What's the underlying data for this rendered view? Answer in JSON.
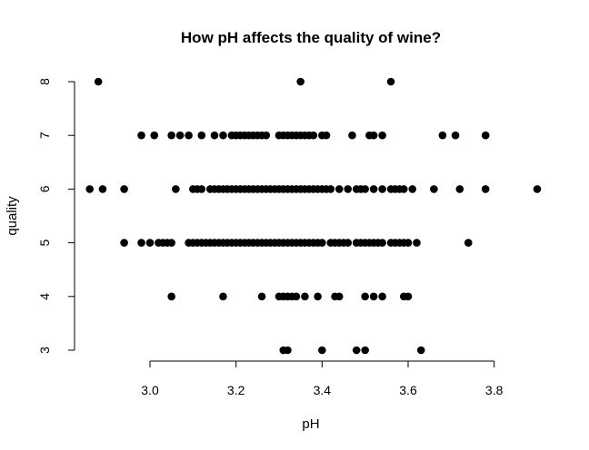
{
  "chart_data": {
    "type": "scatter",
    "title": "How pH affects the quality of wine?",
    "xlabel": "pH",
    "ylabel": "quality",
    "xlim": [
      2.85,
      3.9
    ],
    "ylim": [
      3,
      8
    ],
    "xticks": [
      "3.0",
      "3.2",
      "3.4",
      "3.6",
      "3.8"
    ],
    "xtick_values": [
      3.0,
      3.2,
      3.4,
      3.6,
      3.8
    ],
    "yticks": [
      "3",
      "4",
      "5",
      "6",
      "7",
      "8"
    ],
    "ytick_values": [
      3,
      4,
      5,
      6,
      7,
      8
    ],
    "grid": false,
    "marker_color": "#000000",
    "points": [
      {
        "x": 2.88,
        "y": 8
      },
      {
        "x": 3.35,
        "y": 8
      },
      {
        "x": 3.56,
        "y": 8
      },
      {
        "x": 2.98,
        "y": 7
      },
      {
        "x": 3.01,
        "y": 7
      },
      {
        "x": 3.05,
        "y": 7
      },
      {
        "x": 3.07,
        "y": 7
      },
      {
        "x": 3.09,
        "y": 7
      },
      {
        "x": 3.12,
        "y": 7
      },
      {
        "x": 3.15,
        "y": 7
      },
      {
        "x": 3.17,
        "y": 7
      },
      {
        "x": 3.19,
        "y": 7
      },
      {
        "x": 3.2,
        "y": 7
      },
      {
        "x": 3.21,
        "y": 7
      },
      {
        "x": 3.22,
        "y": 7
      },
      {
        "x": 3.23,
        "y": 7
      },
      {
        "x": 3.24,
        "y": 7
      },
      {
        "x": 3.25,
        "y": 7
      },
      {
        "x": 3.26,
        "y": 7
      },
      {
        "x": 3.27,
        "y": 7
      },
      {
        "x": 3.3,
        "y": 7
      },
      {
        "x": 3.31,
        "y": 7
      },
      {
        "x": 3.32,
        "y": 7
      },
      {
        "x": 3.33,
        "y": 7
      },
      {
        "x": 3.34,
        "y": 7
      },
      {
        "x": 3.35,
        "y": 7
      },
      {
        "x": 3.36,
        "y": 7
      },
      {
        "x": 3.37,
        "y": 7
      },
      {
        "x": 3.38,
        "y": 7
      },
      {
        "x": 3.4,
        "y": 7
      },
      {
        "x": 3.41,
        "y": 7
      },
      {
        "x": 3.47,
        "y": 7
      },
      {
        "x": 3.51,
        "y": 7
      },
      {
        "x": 3.52,
        "y": 7
      },
      {
        "x": 3.54,
        "y": 7
      },
      {
        "x": 3.68,
        "y": 7
      },
      {
        "x": 3.71,
        "y": 7
      },
      {
        "x": 3.78,
        "y": 7
      },
      {
        "x": 2.86,
        "y": 6
      },
      {
        "x": 2.89,
        "y": 6
      },
      {
        "x": 2.94,
        "y": 6
      },
      {
        "x": 3.06,
        "y": 6
      },
      {
        "x": 3.1,
        "y": 6
      },
      {
        "x": 3.11,
        "y": 6
      },
      {
        "x": 3.12,
        "y": 6
      },
      {
        "x": 3.14,
        "y": 6
      },
      {
        "x": 3.15,
        "y": 6
      },
      {
        "x": 3.16,
        "y": 6
      },
      {
        "x": 3.17,
        "y": 6
      },
      {
        "x": 3.18,
        "y": 6
      },
      {
        "x": 3.19,
        "y": 6
      },
      {
        "x": 3.2,
        "y": 6
      },
      {
        "x": 3.21,
        "y": 6
      },
      {
        "x": 3.22,
        "y": 6
      },
      {
        "x": 3.23,
        "y": 6
      },
      {
        "x": 3.24,
        "y": 6
      },
      {
        "x": 3.25,
        "y": 6
      },
      {
        "x": 3.26,
        "y": 6
      },
      {
        "x": 3.27,
        "y": 6
      },
      {
        "x": 3.28,
        "y": 6
      },
      {
        "x": 3.29,
        "y": 6
      },
      {
        "x": 3.3,
        "y": 6
      },
      {
        "x": 3.31,
        "y": 6
      },
      {
        "x": 3.32,
        "y": 6
      },
      {
        "x": 3.33,
        "y": 6
      },
      {
        "x": 3.34,
        "y": 6
      },
      {
        "x": 3.35,
        "y": 6
      },
      {
        "x": 3.36,
        "y": 6
      },
      {
        "x": 3.37,
        "y": 6
      },
      {
        "x": 3.38,
        "y": 6
      },
      {
        "x": 3.39,
        "y": 6
      },
      {
        "x": 3.4,
        "y": 6
      },
      {
        "x": 3.41,
        "y": 6
      },
      {
        "x": 3.42,
        "y": 6
      },
      {
        "x": 3.44,
        "y": 6
      },
      {
        "x": 3.46,
        "y": 6
      },
      {
        "x": 3.48,
        "y": 6
      },
      {
        "x": 3.49,
        "y": 6
      },
      {
        "x": 3.5,
        "y": 6
      },
      {
        "x": 3.52,
        "y": 6
      },
      {
        "x": 3.54,
        "y": 6
      },
      {
        "x": 3.56,
        "y": 6
      },
      {
        "x": 3.57,
        "y": 6
      },
      {
        "x": 3.58,
        "y": 6
      },
      {
        "x": 3.59,
        "y": 6
      },
      {
        "x": 3.61,
        "y": 6
      },
      {
        "x": 3.66,
        "y": 6
      },
      {
        "x": 3.72,
        "y": 6
      },
      {
        "x": 3.78,
        "y": 6
      },
      {
        "x": 3.9,
        "y": 6
      },
      {
        "x": 2.94,
        "y": 5
      },
      {
        "x": 2.98,
        "y": 5
      },
      {
        "x": 3.0,
        "y": 5
      },
      {
        "x": 3.02,
        "y": 5
      },
      {
        "x": 3.03,
        "y": 5
      },
      {
        "x": 3.04,
        "y": 5
      },
      {
        "x": 3.05,
        "y": 5
      },
      {
        "x": 3.09,
        "y": 5
      },
      {
        "x": 3.1,
        "y": 5
      },
      {
        "x": 3.11,
        "y": 5
      },
      {
        "x": 3.12,
        "y": 5
      },
      {
        "x": 3.13,
        "y": 5
      },
      {
        "x": 3.14,
        "y": 5
      },
      {
        "x": 3.15,
        "y": 5
      },
      {
        "x": 3.16,
        "y": 5
      },
      {
        "x": 3.17,
        "y": 5
      },
      {
        "x": 3.18,
        "y": 5
      },
      {
        "x": 3.19,
        "y": 5
      },
      {
        "x": 3.2,
        "y": 5
      },
      {
        "x": 3.21,
        "y": 5
      },
      {
        "x": 3.22,
        "y": 5
      },
      {
        "x": 3.23,
        "y": 5
      },
      {
        "x": 3.24,
        "y": 5
      },
      {
        "x": 3.25,
        "y": 5
      },
      {
        "x": 3.26,
        "y": 5
      },
      {
        "x": 3.27,
        "y": 5
      },
      {
        "x": 3.28,
        "y": 5
      },
      {
        "x": 3.29,
        "y": 5
      },
      {
        "x": 3.3,
        "y": 5
      },
      {
        "x": 3.31,
        "y": 5
      },
      {
        "x": 3.32,
        "y": 5
      },
      {
        "x": 3.33,
        "y": 5
      },
      {
        "x": 3.34,
        "y": 5
      },
      {
        "x": 3.35,
        "y": 5
      },
      {
        "x": 3.36,
        "y": 5
      },
      {
        "x": 3.37,
        "y": 5
      },
      {
        "x": 3.38,
        "y": 5
      },
      {
        "x": 3.39,
        "y": 5
      },
      {
        "x": 3.4,
        "y": 5
      },
      {
        "x": 3.42,
        "y": 5
      },
      {
        "x": 3.43,
        "y": 5
      },
      {
        "x": 3.44,
        "y": 5
      },
      {
        "x": 3.45,
        "y": 5
      },
      {
        "x": 3.46,
        "y": 5
      },
      {
        "x": 3.48,
        "y": 5
      },
      {
        "x": 3.49,
        "y": 5
      },
      {
        "x": 3.5,
        "y": 5
      },
      {
        "x": 3.51,
        "y": 5
      },
      {
        "x": 3.52,
        "y": 5
      },
      {
        "x": 3.53,
        "y": 5
      },
      {
        "x": 3.54,
        "y": 5
      },
      {
        "x": 3.56,
        "y": 5
      },
      {
        "x": 3.57,
        "y": 5
      },
      {
        "x": 3.58,
        "y": 5
      },
      {
        "x": 3.59,
        "y": 5
      },
      {
        "x": 3.6,
        "y": 5
      },
      {
        "x": 3.62,
        "y": 5
      },
      {
        "x": 3.74,
        "y": 5
      },
      {
        "x": 3.05,
        "y": 4
      },
      {
        "x": 3.17,
        "y": 4
      },
      {
        "x": 3.26,
        "y": 4
      },
      {
        "x": 3.3,
        "y": 4
      },
      {
        "x": 3.31,
        "y": 4
      },
      {
        "x": 3.32,
        "y": 4
      },
      {
        "x": 3.33,
        "y": 4
      },
      {
        "x": 3.34,
        "y": 4
      },
      {
        "x": 3.36,
        "y": 4
      },
      {
        "x": 3.39,
        "y": 4
      },
      {
        "x": 3.43,
        "y": 4
      },
      {
        "x": 3.44,
        "y": 4
      },
      {
        "x": 3.5,
        "y": 4
      },
      {
        "x": 3.52,
        "y": 4
      },
      {
        "x": 3.54,
        "y": 4
      },
      {
        "x": 3.59,
        "y": 4
      },
      {
        "x": 3.6,
        "y": 4
      },
      {
        "x": 3.31,
        "y": 3
      },
      {
        "x": 3.32,
        "y": 3
      },
      {
        "x": 3.4,
        "y": 3
      },
      {
        "x": 3.48,
        "y": 3
      },
      {
        "x": 3.5,
        "y": 3
      },
      {
        "x": 3.63,
        "y": 3
      }
    ]
  }
}
